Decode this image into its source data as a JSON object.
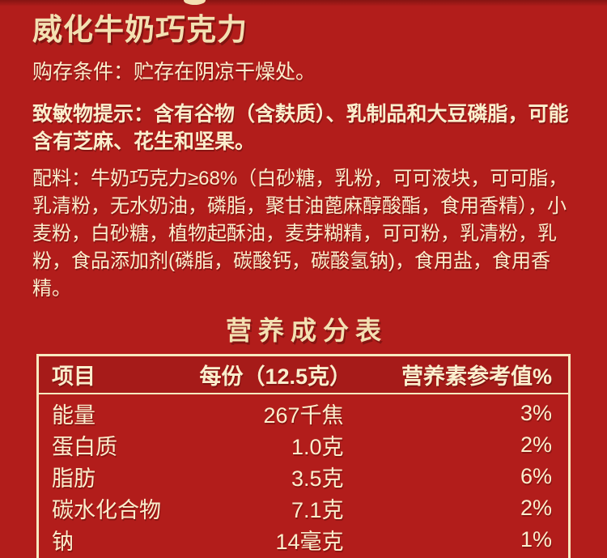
{
  "colors": {
    "background": "#b21d1b",
    "title_cream": "#f3e0b2",
    "text_cream": "#faeecd",
    "table_border": "#f7e9c0"
  },
  "label": {
    "title": "威化牛奶巧克力",
    "storage": "购存条件：贮存在阴凉干燥处。",
    "allergen": "致敏物提示：含有谷物（含麸质）、乳制品和大豆磷脂，可能含有芝麻、花生和坚果。",
    "ingredients": "配料：牛奶巧克力≥68%（白砂糖，乳粉，可可液块，可可脂，乳清粉，无水奶油，磷脂，聚甘油蓖麻醇酸酯，食用香精），小麦粉，白砂糖，植物起酥油，麦芽糊精，可可粉，乳清粉，乳粉，食品添加剂(磷脂，碳酸钙，碳酸氢钠)，食用盐，食用香精。"
  },
  "nutrition": {
    "title": "营养成分表",
    "columns": [
      "项目",
      "每份（12.5克）",
      "营养素参考值%"
    ],
    "rows": [
      {
        "item": "能量",
        "amount": "267千焦",
        "nrv": "3%"
      },
      {
        "item": "蛋白质",
        "amount": "1.0克",
        "nrv": "2%"
      },
      {
        "item": "脂肪",
        "amount": "3.5克",
        "nrv": "6%"
      },
      {
        "item": "碳水化合物",
        "amount": "7.1克",
        "nrv": "2%"
      },
      {
        "item": "钠",
        "amount": "14毫克",
        "nrv": "1%"
      }
    ]
  }
}
